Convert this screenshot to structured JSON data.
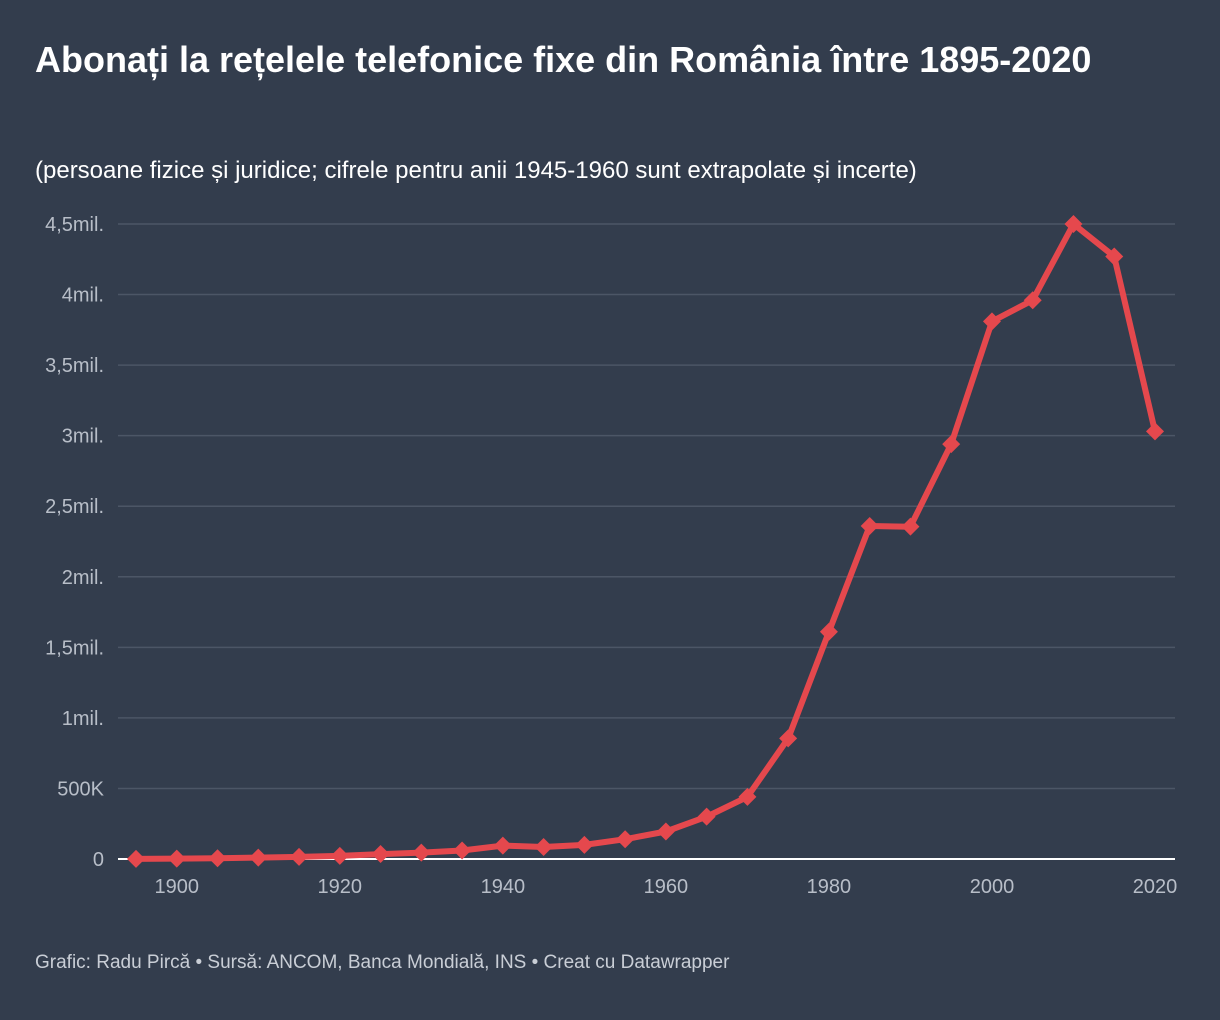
{
  "title": "Abonați la rețelele telefonice fixe din România între 1895-2020",
  "subtitle": "(persoane fizice și juridice; cifrele pentru anii 1945-1960 sunt extrapolate și incerte)",
  "footer": "Grafic: Radu Pircă • Sursă: ANCOM, Banca Mondială, INS • Creat cu Datawrapper",
  "colors": {
    "background": "#333d4d",
    "line": "#e5484d",
    "grid": "#4c5666",
    "axis": "#ffffff",
    "tick_text": "#b8bec8"
  },
  "chart_data": {
    "type": "line",
    "title": "Abonați la rețelele telefonice fixe din România între 1895-2020",
    "xlabel": "",
    "ylabel": "",
    "xlim": [
      1895,
      2020
    ],
    "ylim": [
      0,
      4500000
    ],
    "grid": true,
    "x_ticks": [
      {
        "value": 1900,
        "label": "1900"
      },
      {
        "value": 1920,
        "label": "1920"
      },
      {
        "value": 1940,
        "label": "1940"
      },
      {
        "value": 1960,
        "label": "1960"
      },
      {
        "value": 1980,
        "label": "1980"
      },
      {
        "value": 2000,
        "label": "2000"
      },
      {
        "value": 2020,
        "label": "2020"
      }
    ],
    "y_ticks": [
      {
        "value": 0,
        "label": "0"
      },
      {
        "value": 500000,
        "label": "500K"
      },
      {
        "value": 1000000,
        "label": "1mil."
      },
      {
        "value": 1500000,
        "label": "1,5mil."
      },
      {
        "value": 2000000,
        "label": "2mil."
      },
      {
        "value": 2500000,
        "label": "2,5mil."
      },
      {
        "value": 3000000,
        "label": "3mil."
      },
      {
        "value": 3500000,
        "label": "3,5mil."
      },
      {
        "value": 4000000,
        "label": "4mil."
      },
      {
        "value": 4500000,
        "label": "4,5mil."
      }
    ],
    "series": [
      {
        "name": "Abonați",
        "x": [
          1895,
          1900,
          1905,
          1910,
          1915,
          1920,
          1925,
          1930,
          1935,
          1940,
          1945,
          1950,
          1955,
          1960,
          1965,
          1970,
          1975,
          1980,
          1985,
          1990,
          1995,
          2000,
          2005,
          2010,
          2015,
          2020
        ],
        "values": [
          1000,
          3000,
          5000,
          10000,
          15000,
          22000,
          35000,
          45000,
          60000,
          95000,
          85000,
          100000,
          140000,
          195000,
          300000,
          440000,
          855000,
          1610000,
          2360000,
          2355000,
          2940000,
          3810000,
          3960000,
          4500000,
          4270000,
          3030000
        ]
      }
    ]
  }
}
